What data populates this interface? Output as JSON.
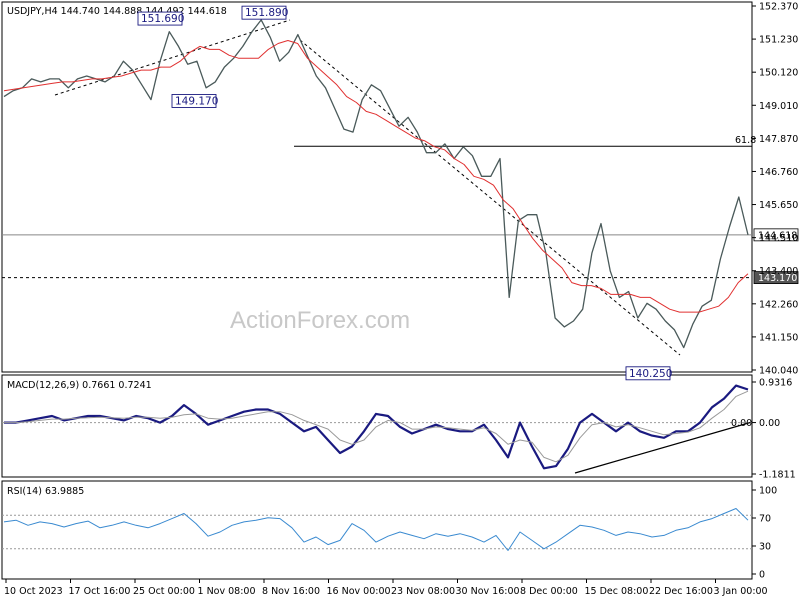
{
  "watermark": "ActionForex.com",
  "chart_data": [
    {
      "panel": "price",
      "type": "line",
      "title": "USDJPY,H4  144.740 144.888 144.492 144.618",
      "ylim": [
        140.04,
        152.37
      ],
      "y_ticks": [
        "152.370",
        "151.230",
        "150.120",
        "149.010",
        "147.870",
        "146.760",
        "145.650",
        "144.510",
        "143.400",
        "142.260",
        "141.150",
        "140.040"
      ],
      "x_tick_labels": [
        "10 Oct 2023",
        "17 Oct 16:00",
        "25 Oct 00:00",
        "1 Nov 08:00",
        "8 Nov 16:00",
        "16 Nov 00:00",
        "23 Nov 08:00",
        "30 Nov 16:00",
        "8 Dec 00:00",
        "15 Dec 08:00",
        "22 Dec 16:00",
        "3 Jan 00:00"
      ],
      "series": [
        {
          "color": "#4a5a5a",
          "values": [
            149.3,
            149.5,
            149.6,
            149.9,
            149.8,
            149.9,
            149.9,
            149.6,
            149.9,
            150.0,
            149.9,
            149.8,
            150.0,
            150.5,
            150.2,
            149.7,
            149.2,
            150.5,
            151.5,
            151.0,
            150.4,
            150.5,
            149.6,
            149.8,
            150.3,
            150.6,
            151.0,
            151.5,
            151.9,
            151.3,
            150.5,
            150.8,
            151.4,
            150.7,
            150.0,
            149.6,
            148.9,
            148.2,
            148.1,
            149.2,
            149.7,
            149.5,
            148.9,
            148.3,
            148.6,
            148.1,
            147.4,
            147.4,
            147.7,
            147.2,
            147.6,
            147.3,
            146.6,
            146.6,
            147.2,
            142.5,
            145.1,
            145.3,
            145.3,
            144.0,
            141.8,
            141.5,
            141.7,
            142.1,
            144.0,
            145.0,
            143.4,
            142.5,
            142.7,
            141.8,
            142.3,
            142.1,
            141.7,
            141.4,
            140.8,
            141.6,
            142.2,
            142.4,
            143.8,
            144.9,
            145.9,
            144.618
          ]
        },
        {
          "color": "#e03030",
          "values": [
            149.5,
            149.55,
            149.6,
            149.65,
            149.7,
            149.75,
            149.8,
            149.8,
            149.85,
            149.9,
            149.9,
            149.95,
            150.0,
            150.1,
            150.2,
            150.2,
            150.3,
            150.3,
            150.5,
            150.8,
            151.0,
            150.9,
            150.9,
            150.7,
            150.6,
            150.6,
            150.6,
            150.9,
            151.1,
            151.2,
            151.1,
            150.6,
            150.3,
            150.0,
            149.7,
            149.3,
            149.1,
            148.8,
            148.7,
            148.5,
            148.3,
            148.1,
            147.9,
            147.8,
            147.6,
            147.5,
            147.2,
            147.0,
            146.6,
            146.5,
            146.3,
            145.8,
            145.5,
            145.0,
            144.5,
            144.1,
            143.8,
            143.5,
            143.0,
            142.9,
            142.9,
            142.8,
            142.6,
            142.6,
            142.6,
            142.5,
            142.5,
            142.3,
            142.1,
            142.0,
            142.0,
            142.0,
            142.1,
            142.2,
            142.5,
            143.0,
            143.3
          ]
        }
      ],
      "levels": [
        {
          "label": "61.8",
          "value": 147.62
        },
        {
          "label": "144.618",
          "value": 144.618
        },
        {
          "label": "143.170",
          "value": 143.17
        }
      ],
      "annotations": [
        {
          "label": "151.690",
          "value": 151.69
        },
        {
          "label": "151.890",
          "value": 151.89
        },
        {
          "label": "149.170",
          "value": 149.17
        },
        {
          "label": "140.250",
          "value": 140.25
        }
      ]
    },
    {
      "panel": "macd",
      "type": "line",
      "title": "MACD(12,26,9) 0.7661 0.7241",
      "ylim": [
        -1.1811,
        0.9316
      ],
      "y_ticks": [
        "0.9316",
        "0.00",
        "-1.1811"
      ],
      "series": [
        {
          "color": "#1a1a80",
          "values": [
            0.0,
            0.0,
            0.05,
            0.1,
            0.15,
            0.05,
            0.1,
            0.15,
            0.15,
            0.1,
            0.05,
            0.15,
            0.1,
            0.0,
            0.15,
            0.4,
            0.2,
            -0.05,
            0.05,
            0.15,
            0.25,
            0.3,
            0.3,
            0.2,
            0.0,
            -0.2,
            -0.1,
            -0.4,
            -0.7,
            -0.55,
            -0.2,
            0.2,
            0.15,
            -0.1,
            -0.25,
            -0.15,
            -0.05,
            -0.15,
            -0.2,
            -0.2,
            -0.05,
            -0.4,
            -0.8,
            0.0,
            -0.55,
            -1.05,
            -1.0,
            -0.6,
            0.0,
            0.2,
            0.0,
            -0.2,
            0.0,
            -0.2,
            -0.3,
            -0.35,
            -0.2,
            -0.2,
            0.0,
            0.35,
            0.55,
            0.85,
            0.76
          ]
        },
        {
          "color": "#9a9a9a",
          "values": [
            0.0,
            0.0,
            0.02,
            0.05,
            0.08,
            0.08,
            0.1,
            0.11,
            0.12,
            0.11,
            0.1,
            0.12,
            0.12,
            0.1,
            0.12,
            0.18,
            0.2,
            0.1,
            0.08,
            0.1,
            0.15,
            0.2,
            0.25,
            0.25,
            0.18,
            0.05,
            -0.05,
            -0.15,
            -0.4,
            -0.5,
            -0.4,
            -0.1,
            0.05,
            0.0,
            -0.15,
            -0.15,
            -0.1,
            -0.12,
            -0.15,
            -0.18,
            -0.12,
            -0.25,
            -0.5,
            -0.4,
            -0.45,
            -0.8,
            -0.9,
            -0.75,
            -0.35,
            -0.05,
            0.0,
            -0.1,
            -0.05,
            -0.12,
            -0.2,
            -0.28,
            -0.25,
            -0.22,
            -0.12,
            0.1,
            0.3,
            0.6,
            0.72
          ]
        }
      ],
      "levels": [
        {
          "label": "0.00",
          "value": 0.0
        }
      ]
    },
    {
      "panel": "rsi",
      "type": "line",
      "title": "RSI(14) 63.9885",
      "ylim": [
        0,
        100
      ],
      "y_ticks": [
        "100",
        "70",
        "30",
        "0"
      ],
      "levels": [
        {
          "value": 70
        },
        {
          "value": 30
        }
      ],
      "series": [
        {
          "color": "#3a8ad0",
          "values": [
            62,
            64,
            58,
            62,
            60,
            56,
            60,
            63,
            55,
            58,
            62,
            58,
            55,
            60,
            66,
            72,
            60,
            45,
            50,
            58,
            62,
            64,
            67,
            66,
            55,
            38,
            44,
            35,
            40,
            60,
            52,
            38,
            45,
            50,
            46,
            42,
            48,
            45,
            48,
            44,
            38,
            46,
            28,
            50,
            40,
            30,
            38,
            48,
            58,
            56,
            52,
            46,
            50,
            48,
            44,
            46,
            52,
            55,
            62,
            66,
            72,
            78,
            64
          ]
        }
      ]
    }
  ]
}
